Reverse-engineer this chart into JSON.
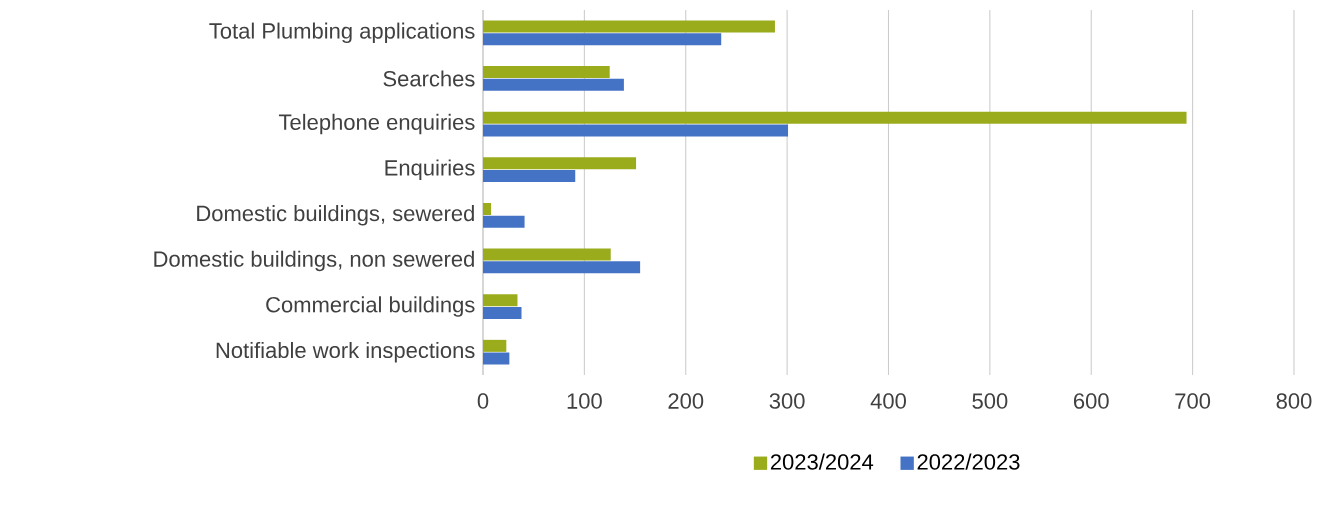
{
  "chart_data": {
    "type": "bar",
    "orientation": "horizontal",
    "categories": [
      "Total Plumbing applications",
      "Searches",
      "Telephone enquiries",
      "Enquiries",
      "Domestic buildings, sewered",
      "Domestic buildings, non sewered",
      "Commercial buildings",
      "Notifiable work inspections"
    ],
    "series": [
      {
        "name": "2023/2024",
        "color": "#9aac1c",
        "values": [
          288,
          125,
          694,
          151,
          8,
          126,
          34,
          23
        ]
      },
      {
        "name": "2022/2023",
        "color": "#4472c4",
        "values": [
          235,
          139,
          301,
          91,
          41,
          155,
          38,
          26
        ]
      }
    ],
    "xlim": [
      0,
      800
    ],
    "xticks": [
      0,
      100,
      200,
      300,
      400,
      500,
      600,
      700,
      800
    ],
    "grid": "x",
    "legend": "bottom"
  }
}
